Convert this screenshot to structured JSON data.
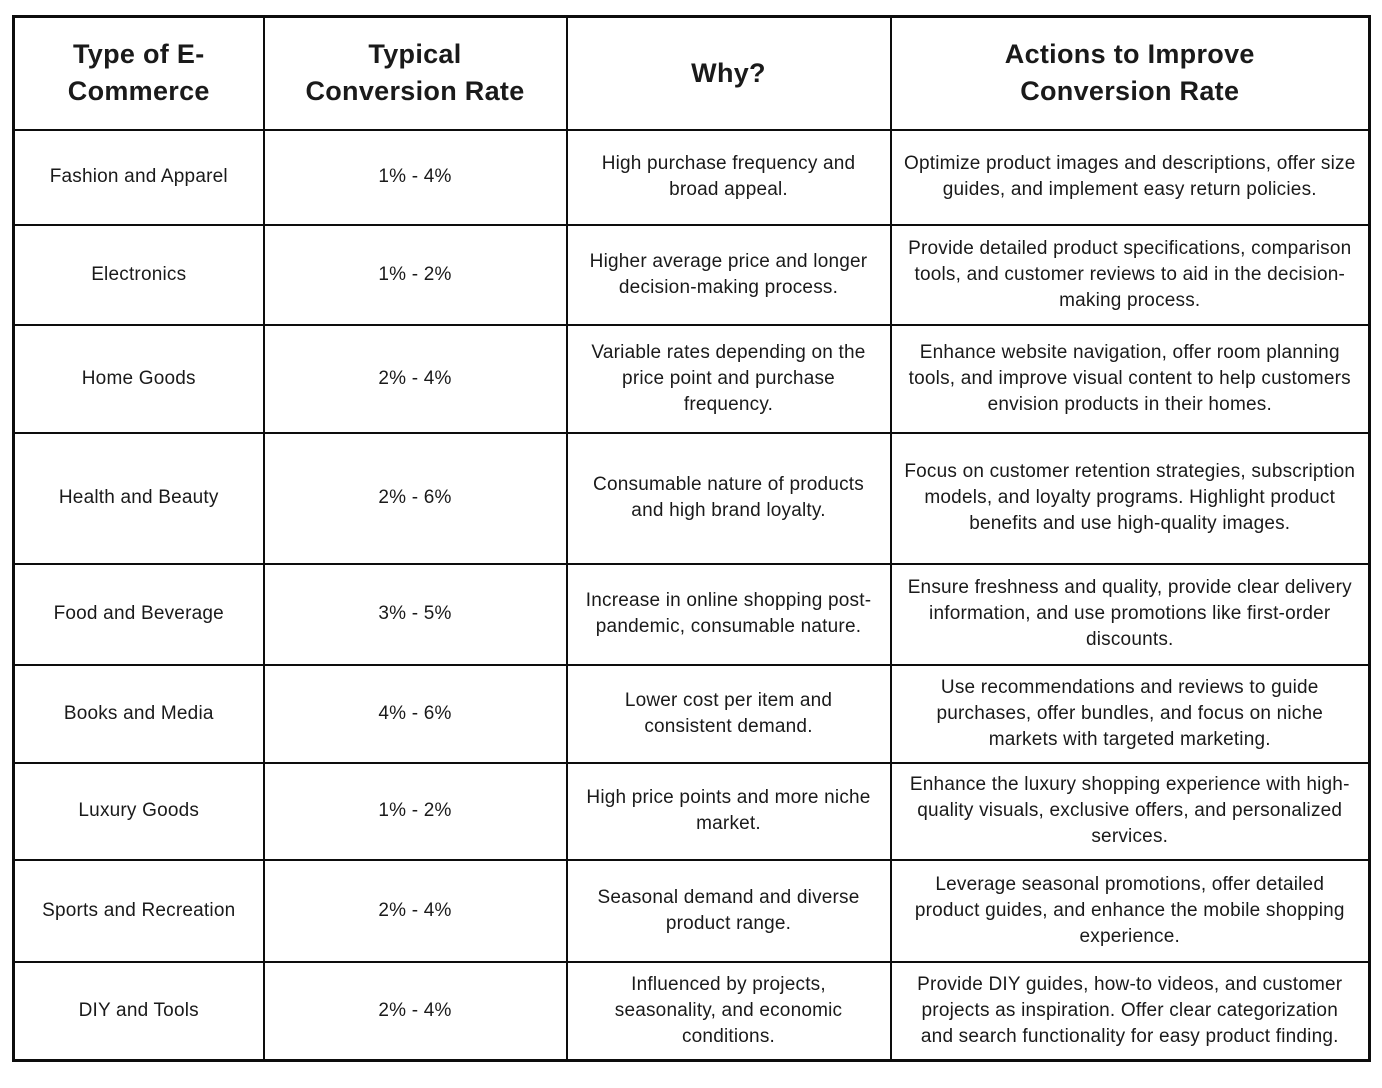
{
  "colors": {
    "background": "#ffffff",
    "text": "#1a1a1a",
    "border": "#0d0d0d"
  },
  "chart_data": {
    "type": "table",
    "title": "",
    "columns": [
      "Type of E-\nCommerce",
      "Typical\nConversion Rate",
      "Why?",
      "Actions to Improve\nConversion Rate"
    ],
    "rows": [
      [
        "Fashion and Apparel",
        "1% - 4%",
        "High purchase frequency and broad appeal.",
        "Optimize product images and descriptions, offer size guides, and implement easy return policies."
      ],
      [
        "Electronics",
        "1% - 2%",
        "Higher average price and longer decision-making process.",
        "Provide detailed product specifications, comparison tools, and customer reviews to aid in the decision-making process."
      ],
      [
        "Home Goods",
        "2% - 4%",
        "Variable rates depending on the price point and purchase frequency.",
        "Enhance website navigation, offer room planning tools, and improve visual content to help customers envision products in their homes."
      ],
      [
        "Health and Beauty",
        "2% - 6%",
        "Consumable nature of products and high brand loyalty.",
        "Focus on customer retention strategies, subscription models, and loyalty programs. Highlight product benefits and use high-quality images."
      ],
      [
        "Food and Beverage",
        "3% - 5%",
        "Increase in online shopping post-pandemic, consumable nature.",
        "Ensure freshness and quality, provide clear delivery information, and use promotions like first-order discounts."
      ],
      [
        "Books and Media",
        "4% - 6%",
        "Lower cost per item and consistent demand.",
        "Use recommendations and reviews to guide purchases, offer bundles, and focus on niche markets with targeted marketing."
      ],
      [
        "Luxury Goods",
        "1% - 2%",
        "High price points and more niche market.",
        "Enhance the luxury shopping experience with high-quality visuals, exclusive offers, and personalized services."
      ],
      [
        "Sports and Recreation",
        "2% - 4%",
        "Seasonal demand and diverse product range.",
        "Leverage seasonal promotions, offer detailed product guides, and enhance the mobile shopping experience."
      ],
      [
        "DIY and Tools",
        "2% - 4%",
        "Influenced by projects, seasonality, and economic conditions.",
        "Provide DIY guides, how-to videos, and customer projects as inspiration. Offer clear categorization and search functionality for easy product finding."
      ]
    ]
  }
}
